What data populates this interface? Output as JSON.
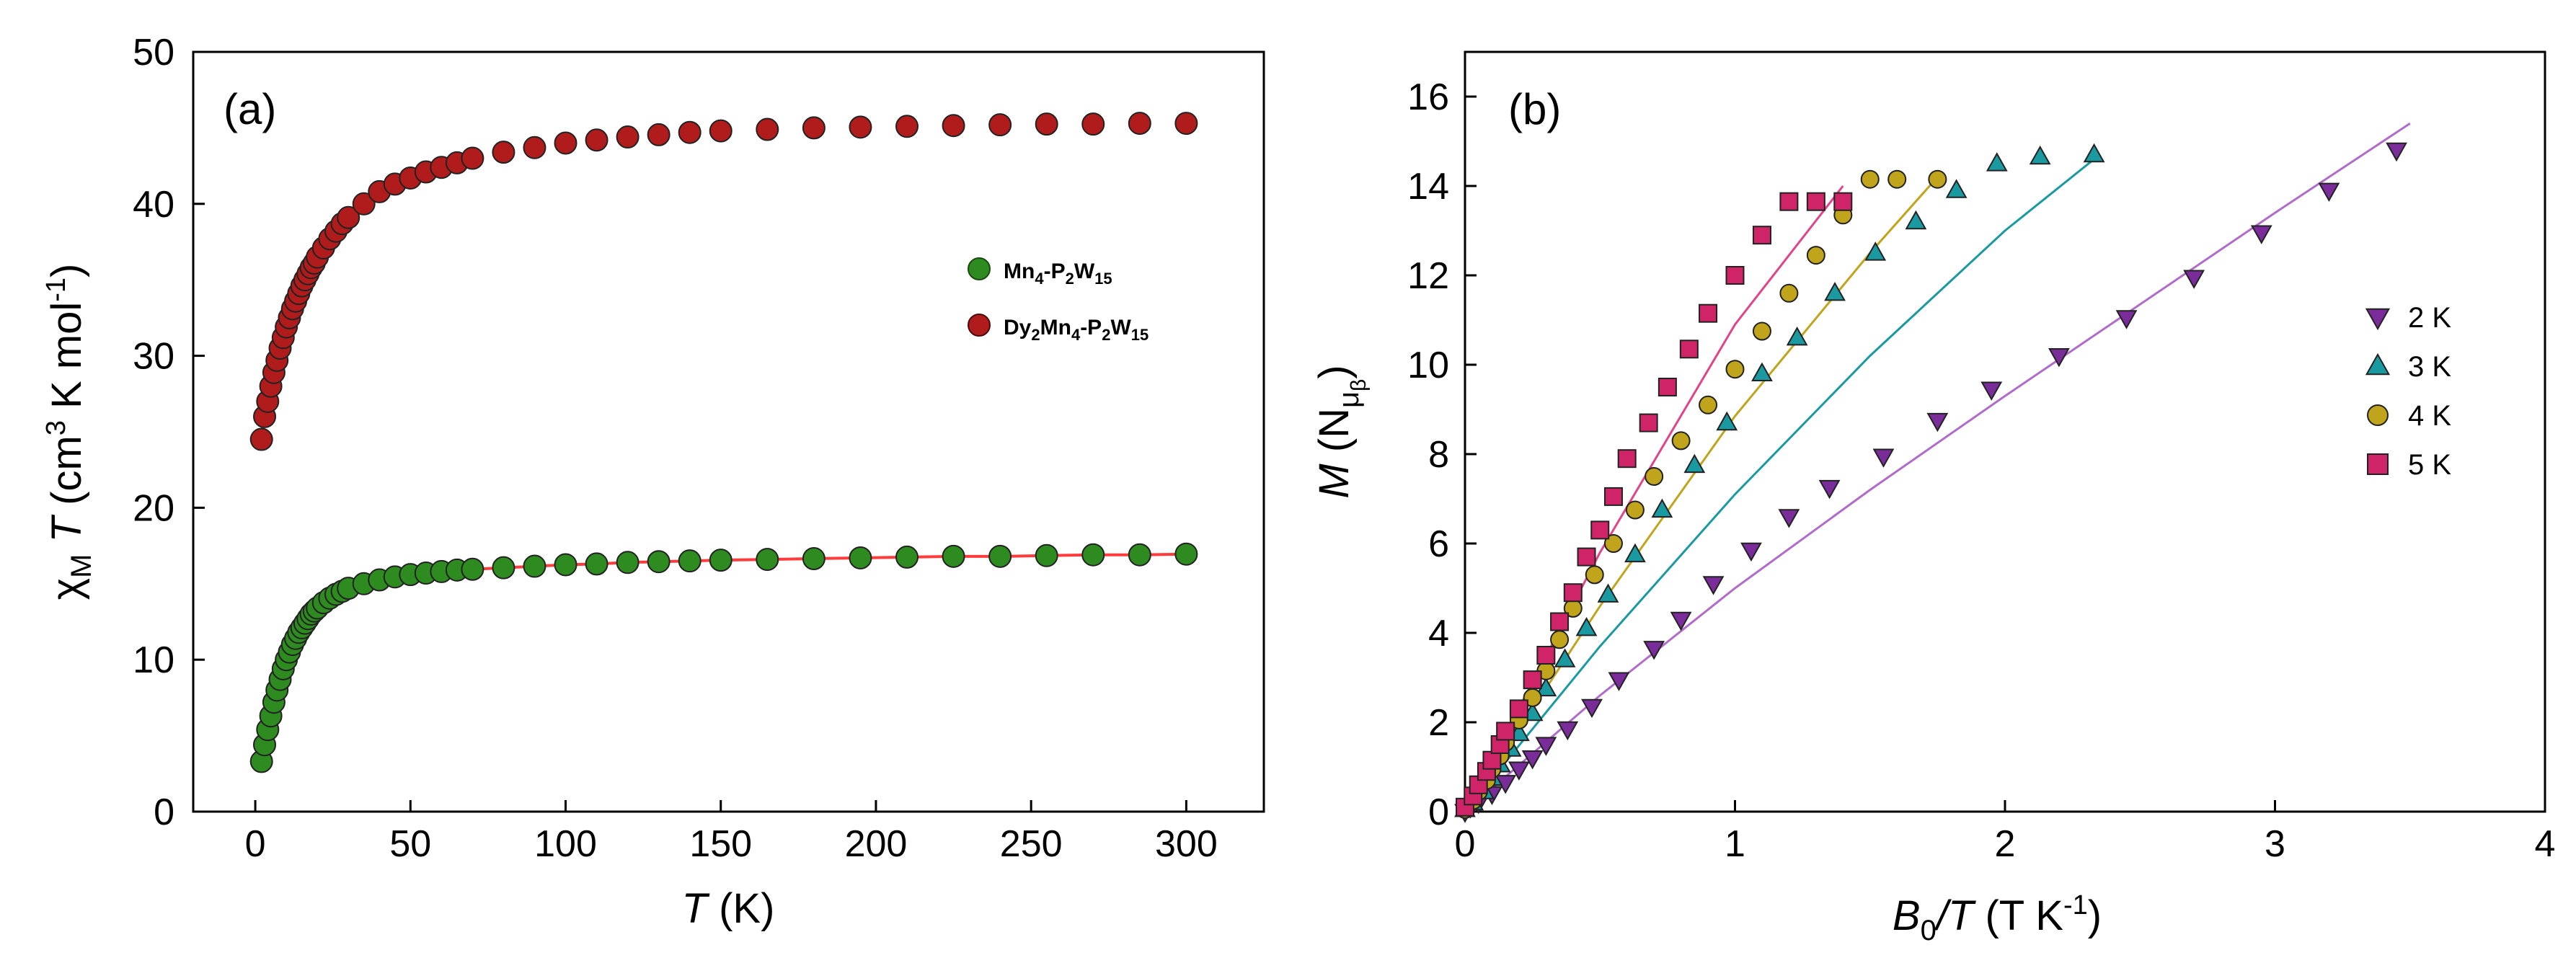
{
  "chart_data": [
    {
      "panel_label": "(a)",
      "type": "scatter",
      "xlabel": "T",
      "xlabel_unit": " (K)",
      "ylabel_prefix": "χ",
      "ylabel_sub": "M",
      "ylabel_var": " T",
      "ylabel_unit_pre": " (cm",
      "ylabel_unit_sup": "3",
      "ylabel_unit_mid": " K mol",
      "ylabel_unit_sup2": "-1",
      "ylabel_unit_post": ")",
      "xlim": [
        -20,
        325
      ],
      "ylim": [
        0,
        50
      ],
      "xticks": [
        "0",
        "50",
        "100",
        "150",
        "200",
        "250",
        "300"
      ],
      "yticks": [
        "0",
        "10",
        "20",
        "30",
        "40",
        "50"
      ],
      "legend_position": "right",
      "series": [
        {
          "name": "Mn4-P2W15",
          "legend_parts": [
            [
              "Mn",
              ""
            ],
            [
              "4",
              "sub"
            ],
            [
              "-P",
              ""
            ],
            [
              "2",
              "sub"
            ],
            [
              "W",
              ""
            ],
            [
              "15",
              "sub"
            ]
          ],
          "color": "#2e8b20",
          "marker": "circle",
          "fit_color": "#ff3b3b",
          "x": [
            2,
            3,
            4,
            5,
            6,
            7,
            8,
            9,
            10,
            11,
            12,
            13,
            14,
            15,
            16,
            17,
            18,
            19,
            20,
            22,
            24,
            26,
            28,
            30,
            35,
            40,
            45,
            50,
            55,
            60,
            65,
            70,
            80,
            90,
            100,
            110,
            120,
            130,
            140,
            150,
            165,
            180,
            195,
            210,
            225,
            240,
            255,
            270,
            285,
            300
          ],
          "y": [
            3.3,
            4.4,
            5.4,
            6.3,
            7.2,
            8.0,
            8.7,
            9.4,
            10.0,
            10.5,
            11.0,
            11.4,
            11.8,
            12.1,
            12.4,
            12.7,
            13.0,
            13.2,
            13.4,
            13.75,
            14.05,
            14.3,
            14.5,
            14.7,
            15.0,
            15.25,
            15.45,
            15.6,
            15.7,
            15.8,
            15.9,
            15.95,
            16.05,
            16.15,
            16.25,
            16.3,
            16.4,
            16.45,
            16.5,
            16.55,
            16.6,
            16.65,
            16.7,
            16.75,
            16.8,
            16.8,
            16.85,
            16.9,
            16.9,
            16.95
          ]
        },
        {
          "name": "Dy2Mn4-P2W15",
          "legend_parts": [
            [
              "Dy",
              ""
            ],
            [
              "2",
              "sub"
            ],
            [
              "Mn",
              ""
            ],
            [
              "4",
              "sub"
            ],
            [
              "-P",
              ""
            ],
            [
              "2",
              "sub"
            ],
            [
              "W",
              ""
            ],
            [
              "15",
              "sub"
            ]
          ],
          "color": "#b01c1c",
          "marker": "circle",
          "x": [
            2,
            3,
            4,
            5,
            6,
            7,
            8,
            9,
            10,
            11,
            12,
            13,
            14,
            15,
            16,
            17,
            18,
            19,
            20,
            22,
            24,
            26,
            28,
            30,
            35,
            40,
            45,
            50,
            55,
            60,
            65,
            70,
            80,
            90,
            100,
            110,
            120,
            130,
            140,
            150,
            165,
            180,
            195,
            210,
            225,
            240,
            255,
            270,
            285,
            300
          ],
          "y": [
            24.5,
            26.0,
            27.0,
            28.0,
            28.9,
            29.7,
            30.5,
            31.2,
            31.9,
            32.5,
            33.1,
            33.6,
            34.1,
            34.6,
            35.0,
            35.4,
            35.8,
            36.1,
            36.5,
            37.1,
            37.7,
            38.2,
            38.7,
            39.1,
            40.0,
            40.8,
            41.3,
            41.7,
            42.1,
            42.4,
            42.7,
            43.0,
            43.4,
            43.7,
            44.0,
            44.2,
            44.4,
            44.55,
            44.7,
            44.8,
            44.9,
            45.0,
            45.05,
            45.1,
            45.15,
            45.2,
            45.25,
            45.25,
            45.3,
            45.3
          ]
        }
      ]
    },
    {
      "panel_label": "(b)",
      "type": "scatter",
      "xlabel_var": "B",
      "xlabel_sub": "0",
      "xlabel_var2": "/T",
      "xlabel_unit_pre": " (T K",
      "xlabel_unit_sup": "-1",
      "xlabel_unit_post": ")",
      "ylabel_var": "M",
      "ylabel_unit_pre": " (N",
      "ylabel_unit_mu": "μ",
      "ylabel_unit_beta": "β",
      "ylabel_unit_post": ")",
      "xlim": [
        0,
        4
      ],
      "ylim": [
        0,
        17
      ],
      "xticks": [
        "0",
        "1",
        "2",
        "3",
        "4"
      ],
      "yticks": [
        "0",
        "2",
        "4",
        "6",
        "8",
        "10",
        "12",
        "14",
        "16"
      ],
      "legend_position": "right",
      "series": [
        {
          "name": "2 K",
          "color": "#7a2c9a",
          "marker": "triangle-down",
          "fit_color": "#b06cc8",
          "x": [
            0.0,
            0.02,
            0.05,
            0.1,
            0.15,
            0.2,
            0.25,
            0.3,
            0.38,
            0.47,
            0.57,
            0.7,
            0.8,
            0.92,
            1.06,
            1.2,
            1.35,
            1.55,
            1.75,
            1.95,
            2.2,
            2.45,
            2.7,
            2.95,
            3.2,
            3.45
          ],
          "y": [
            0.0,
            0.1,
            0.2,
            0.4,
            0.65,
            0.95,
            1.2,
            1.5,
            1.85,
            2.35,
            2.95,
            3.65,
            4.3,
            5.1,
            5.85,
            6.6,
            7.25,
            7.95,
            8.75,
            9.45,
            10.2,
            11.05,
            11.95,
            12.95,
            13.9,
            14.8
          ],
          "fit_x": [
            0,
            0.5,
            1.0,
            1.5,
            2.0,
            2.5,
            3.0,
            3.5
          ],
          "fit_y": [
            0,
            2.6,
            5.0,
            7.2,
            9.3,
            11.35,
            13.4,
            15.4
          ]
        },
        {
          "name": "3 K",
          "color": "#1a9aa0",
          "marker": "triangle-up",
          "fit_color": "#1a9aa0",
          "x": [
            0.0,
            0.03,
            0.07,
            0.1,
            0.13,
            0.17,
            0.2,
            0.25,
            0.3,
            0.37,
            0.45,
            0.53,
            0.63,
            0.73,
            0.85,
            0.97,
            1.1,
            1.23,
            1.37,
            1.52,
            1.67,
            1.82,
            1.97,
            2.13,
            2.33
          ],
          "y": [
            0.05,
            0.2,
            0.45,
            0.75,
            1.05,
            1.4,
            1.75,
            2.2,
            2.75,
            3.4,
            4.1,
            4.85,
            5.75,
            6.75,
            7.75,
            8.7,
            9.8,
            10.6,
            11.6,
            12.5,
            13.2,
            13.9,
            14.5,
            14.65,
            14.7
          ],
          "fit_x": [
            0,
            0.5,
            1.0,
            1.5,
            2.0,
            2.33
          ],
          "fit_y": [
            0,
            3.7,
            7.1,
            10.2,
            13.0,
            14.6
          ]
        },
        {
          "name": "4 K",
          "color": "#c0a41c",
          "marker": "circle",
          "fit_color": "#c0a41c",
          "x": [
            0.0,
            0.03,
            0.05,
            0.08,
            0.1,
            0.13,
            0.15,
            0.2,
            0.25,
            0.3,
            0.35,
            0.4,
            0.48,
            0.55,
            0.63,
            0.7,
            0.8,
            0.9,
            1.0,
            1.1,
            1.2,
            1.3,
            1.4,
            1.5,
            1.6,
            1.75
          ],
          "y": [
            0.05,
            0.25,
            0.45,
            0.7,
            0.95,
            1.25,
            1.55,
            2.05,
            2.55,
            3.15,
            3.85,
            4.55,
            5.3,
            6.0,
            6.75,
            7.5,
            8.3,
            9.1,
            9.9,
            10.75,
            11.6,
            12.45,
            13.35,
            14.15,
            14.15,
            14.15
          ],
          "fit_x": [
            0,
            0.5,
            1.0,
            1.5,
            1.75
          ],
          "fit_y": [
            0,
            4.6,
            8.85,
            12.5,
            14.2
          ]
        },
        {
          "name": "5 K",
          "color": "#d02468",
          "marker": "square",
          "fit_color": "#e0448a",
          "x": [
            0.0,
            0.03,
            0.05,
            0.08,
            0.1,
            0.13,
            0.15,
            0.2,
            0.25,
            0.3,
            0.35,
            0.4,
            0.45,
            0.5,
            0.55,
            0.6,
            0.68,
            0.75,
            0.83,
            0.9,
            1.0,
            1.1,
            1.2,
            1.3,
            1.4
          ],
          "y": [
            0.1,
            0.35,
            0.6,
            0.9,
            1.15,
            1.5,
            1.8,
            2.3,
            2.95,
            3.5,
            4.25,
            4.9,
            5.7,
            6.3,
            7.05,
            7.9,
            8.7,
            9.5,
            10.35,
            11.15,
            12.0,
            12.9,
            13.65,
            13.65,
            13.65
          ],
          "fit_x": [
            0,
            0.5,
            1.0,
            1.4
          ],
          "fit_y": [
            0,
            5.8,
            10.9,
            14.0
          ]
        }
      ]
    }
  ]
}
